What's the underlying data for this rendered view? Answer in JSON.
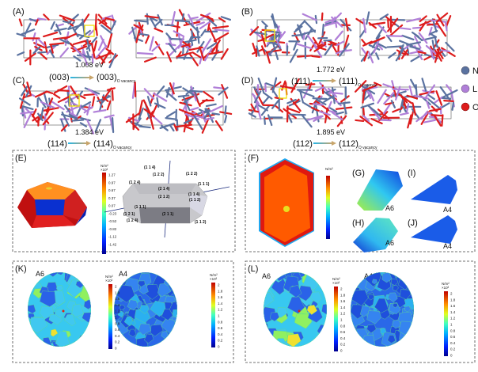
{
  "panels": {
    "A": "(A)",
    "B": "(B)",
    "C": "(C)",
    "D": "(D)",
    "E": "(E)",
    "F": "(F)",
    "G": "(G)",
    "H": "(H)",
    "I": "(I)",
    "J": "(J)",
    "K": "(K)",
    "L": "(L)"
  },
  "transitions": [
    {
      "energy": "1.008 eV",
      "from": "(003)",
      "to": "(003)",
      "sub": "O vacancy"
    },
    {
      "energy": "1.772 eV",
      "from": "(111)",
      "to": "(111)",
      "sub": "O vacancy"
    },
    {
      "energy": "1.384 eV",
      "from": "(114)",
      "to": "(114)",
      "sub": "O vacancy"
    },
    {
      "energy": "1.895 eV",
      "from": "(112)",
      "to": "(112)",
      "sub": "O vacancy"
    }
  ],
  "legend": [
    {
      "label": "N",
      "color": "#5a72a0"
    },
    {
      "label": "L",
      "color": "#b07fd8"
    },
    {
      "label": "O",
      "color": "#dd1c1c"
    }
  ],
  "colorbar_E": {
    "unit": "N/m²",
    "scale": "×10³",
    "ticks": [
      "1.27",
      "0.97",
      "0.67",
      "0.37",
      "0.07",
      "-0.23",
      "-0.52",
      "-0.82",
      "-1.12",
      "-1.42"
    ]
  },
  "colorbar_K": {
    "unit": "N/m²",
    "scale": "×10³",
    "ticks": [
      "2",
      "1.8",
      "1.6",
      "1.4",
      "1.2",
      "1",
      "0.8",
      "0.6",
      "0.4",
      "0.2",
      "0"
    ]
  },
  "miller_labels": [
    "(1 1 4)",
    "(1 2 2)",
    "(1 2 4)",
    "(1 2 2)",
    "(1 1 1)",
    "(2 1 4)",
    "(2 1 2)",
    "(1 1 4)",
    "(1 1 2)",
    "(1 1 1)",
    "(1 2 1)",
    "(2 1 1)",
    "(1 2 4)",
    "(1 1 2)"
  ],
  "subfigure_labels": {
    "G": "A6",
    "H": "A6",
    "I": "A4",
    "J": "A4",
    "K_left": "A6",
    "K_right": "A4",
    "L_left": "A6",
    "L_right": "A4"
  },
  "colors": {
    "ni": "#5a72a0",
    "li": "#b07fd8",
    "o": "#dd1c1c",
    "highlight": "#f2e20a",
    "arrow_start": "#26b6e8",
    "arrow_end": "#c9a56b"
  }
}
